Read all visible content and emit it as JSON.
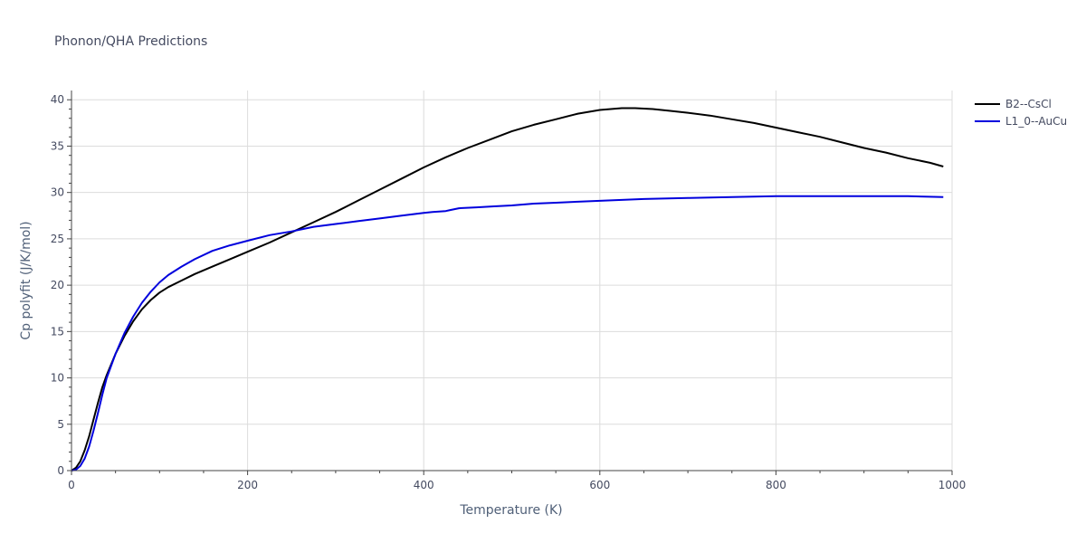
{
  "chart_data": {
    "type": "line",
    "title": "Phonon/QHA Predictions",
    "xlabel": "Temperature (K)",
    "ylabel": "Cp polyfit (J/K/mol)",
    "xlim": [
      0,
      1000
    ],
    "ylim": [
      0,
      41
    ],
    "xticks": [
      0,
      200,
      400,
      600,
      800,
      1000
    ],
    "yticks": [
      0,
      5,
      10,
      15,
      20,
      25,
      30,
      35,
      40
    ],
    "grid": true,
    "legend_position": "top-right",
    "series": [
      {
        "name": "B2--CsCl",
        "color": "#000000",
        "x": [
          0,
          5,
          10,
          15,
          20,
          25,
          30,
          35,
          40,
          50,
          60,
          70,
          80,
          90,
          100,
          110,
          125,
          140,
          160,
          180,
          200,
          225,
          250,
          275,
          300,
          325,
          350,
          375,
          400,
          425,
          450,
          475,
          500,
          525,
          550,
          575,
          600,
          625,
          640,
          660,
          680,
          700,
          725,
          750,
          775,
          800,
          825,
          850,
          875,
          900,
          925,
          950,
          975,
          990
        ],
        "y": [
          0,
          0.3,
          1.0,
          2.2,
          3.7,
          5.5,
          7.3,
          9.0,
          10.3,
          12.6,
          14.5,
          16.1,
          17.4,
          18.4,
          19.2,
          19.8,
          20.5,
          21.2,
          22.0,
          22.8,
          23.6,
          24.6,
          25.7,
          26.8,
          27.9,
          29.1,
          30.3,
          31.5,
          32.7,
          33.8,
          34.8,
          35.7,
          36.6,
          37.3,
          37.9,
          38.5,
          38.9,
          39.1,
          39.1,
          39.0,
          38.8,
          38.6,
          38.3,
          37.9,
          37.5,
          37.0,
          36.5,
          36.0,
          35.4,
          34.8,
          34.3,
          33.7,
          33.2,
          32.8
        ]
      },
      {
        "name": "L1_0--AuCu",
        "color": "#0000dd",
        "x": [
          0,
          5,
          10,
          15,
          20,
          25,
          30,
          35,
          40,
          50,
          60,
          70,
          80,
          90,
          100,
          110,
          125,
          140,
          160,
          180,
          200,
          225,
          250,
          275,
          300,
          325,
          350,
          375,
          400,
          410,
          425,
          430,
          440,
          460,
          480,
          500,
          525,
          550,
          575,
          600,
          625,
          650,
          700,
          750,
          800,
          850,
          900,
          950,
          990
        ],
        "y": [
          0,
          0.1,
          0.5,
          1.3,
          2.6,
          4.3,
          6.2,
          8.2,
          10.0,
          12.6,
          14.8,
          16.6,
          18.1,
          19.3,
          20.3,
          21.1,
          22.0,
          22.8,
          23.7,
          24.3,
          24.8,
          25.4,
          25.8,
          26.3,
          26.6,
          26.9,
          27.2,
          27.5,
          27.8,
          27.9,
          28.0,
          28.1,
          28.3,
          28.4,
          28.5,
          28.6,
          28.8,
          28.9,
          29.0,
          29.1,
          29.2,
          29.3,
          29.4,
          29.5,
          29.6,
          29.6,
          29.6,
          29.6,
          29.5
        ]
      }
    ]
  }
}
